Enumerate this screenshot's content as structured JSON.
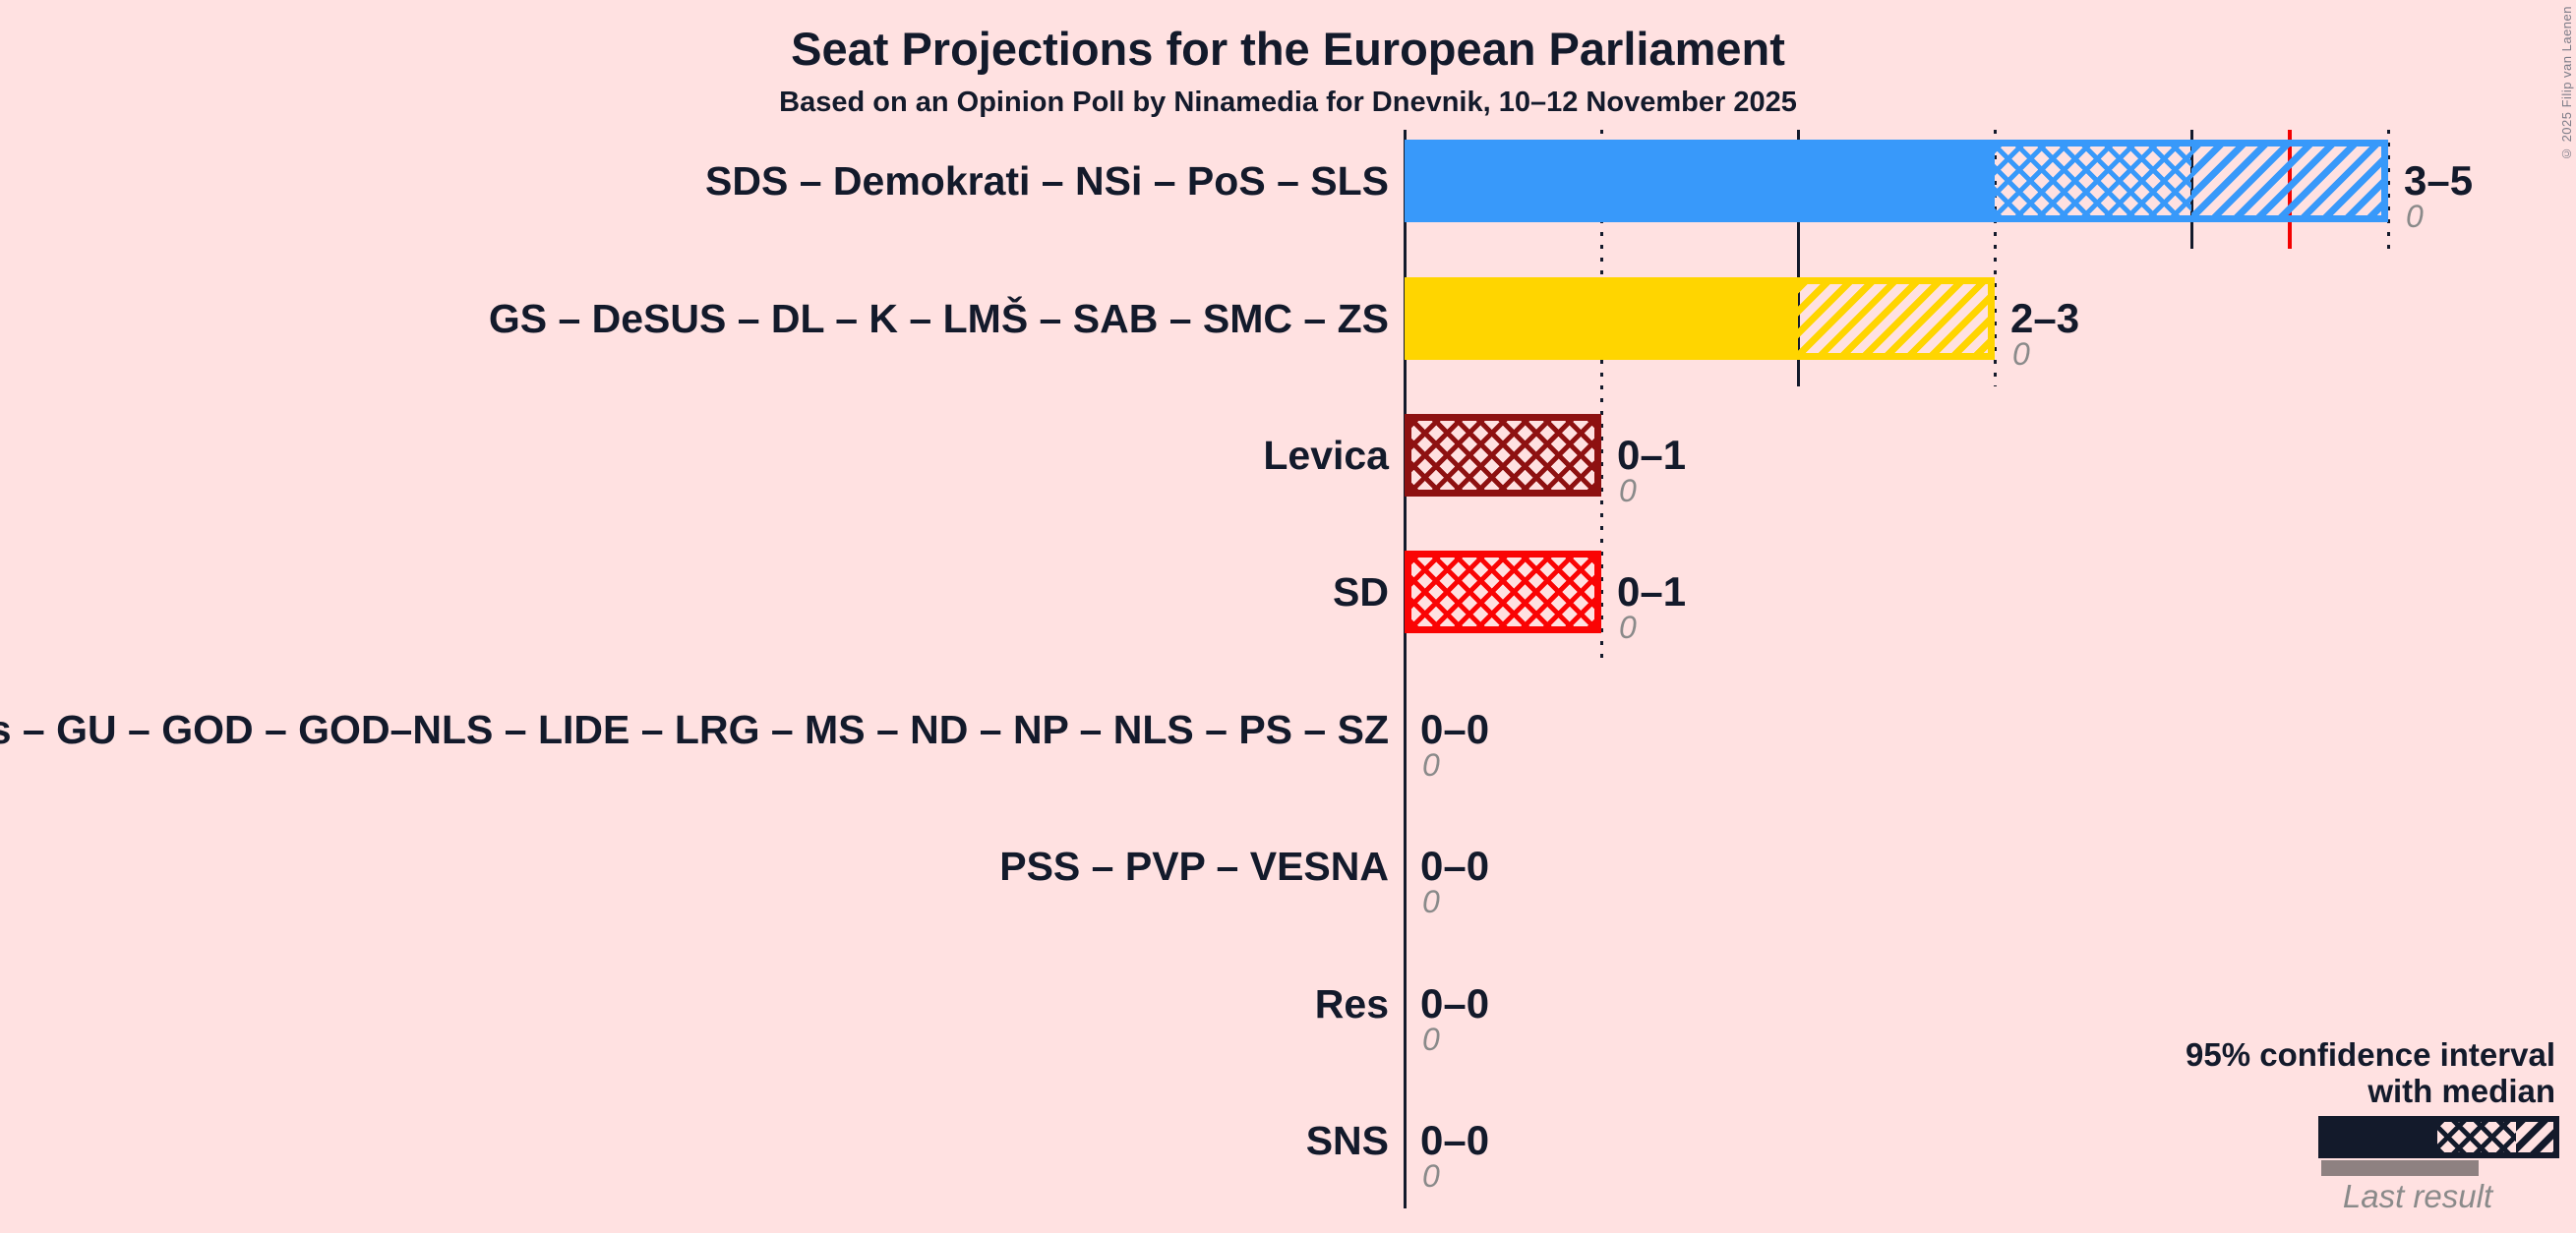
{
  "title": "Seat Projections for the European Parliament",
  "subtitle": "Based on an Opinion Poll by Ninamedia for Dnevnik, 10–12 November 2025",
  "copyright": "© 2025 Filip van Laenen",
  "colors": {
    "background": "#FFE1E1",
    "text": "#131A2B",
    "majority_line": "#F40000",
    "muted_gray": "#8A8A8A",
    "last_result_bar": "#8E8181"
  },
  "legend": {
    "line1": "95% confidence interval",
    "line2": "with median",
    "last_result": "Last result"
  },
  "chart_data": {
    "type": "bar",
    "title": "Seat Projections for the European Parliament",
    "subtitle": "Based on an Opinion Poll by Ninamedia for Dnevnik, 10–12 November 2025",
    "orientation": "horizontal",
    "x_axis": {
      "min": 0,
      "max": 5,
      "ticks": [
        {
          "v": 0,
          "style": "solid"
        },
        {
          "v": 1,
          "style": "dotted"
        },
        {
          "v": 2,
          "style": "solid"
        },
        {
          "v": 3,
          "style": "dotted"
        },
        {
          "v": 4,
          "style": "solid"
        },
        {
          "v": 5,
          "style": "dotted"
        }
      ]
    },
    "majority_line": 4.5,
    "rows": [
      {
        "label": "SDS – Demokrati – NSi – PoS – SLS",
        "color": "#3899FA",
        "ci_low": 3,
        "median": 4,
        "ci_high": 5,
        "value_label": "3–5",
        "last_result": "0"
      },
      {
        "label": "GS – DeSUS – DL – K – LMŠ – SAB – SMC – ZS",
        "color": "#FFD500",
        "ci_low": 2,
        "median": 2,
        "ci_high": 3,
        "value_label": "2–3",
        "last_result": "0"
      },
      {
        "label": "Levica",
        "color": "#8E1111",
        "ci_low": 0,
        "median": 1,
        "ci_high": 1,
        "value_label": "0–1",
        "last_result": "0"
      },
      {
        "label": "SD",
        "color": "#FA0404",
        "ci_low": 0,
        "median": 1,
        "ci_high": 1,
        "value_label": "0–1",
        "last_result": "0"
      },
      {
        "label": "DD – Fokus – GU – GOD – GOD–NLS – LIDE – LRG – MS – ND – NP – NLS – PS – SZ",
        "color": "#131A2B",
        "ci_low": 0,
        "median": 0,
        "ci_high": 0,
        "value_label": "0–0",
        "last_result": "0"
      },
      {
        "label": "PSS – PVP – VESNA",
        "color": "#131A2B",
        "ci_low": 0,
        "median": 0,
        "ci_high": 0,
        "value_label": "0–0",
        "last_result": "0"
      },
      {
        "label": "Res",
        "color": "#131A2B",
        "ci_low": 0,
        "median": 0,
        "ci_high": 0,
        "value_label": "0–0",
        "last_result": "0"
      },
      {
        "label": "SNS",
        "color": "#131A2B",
        "ci_low": 0,
        "median": 0,
        "ci_high": 0,
        "value_label": "0–0",
        "last_result": "0"
      }
    ],
    "legend_position": "bottom-right",
    "grid": "vertical ticks, solid on even seats, dotted on odd seats"
  }
}
